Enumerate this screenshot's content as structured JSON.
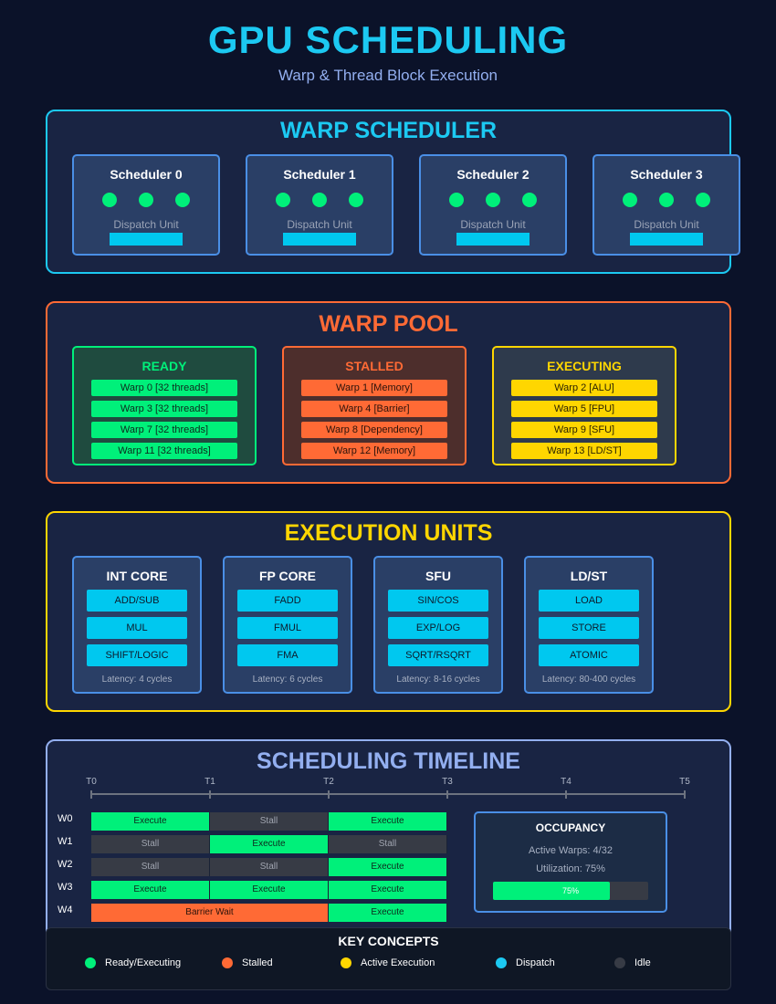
{
  "header": {
    "title": "GPU SCHEDULING",
    "subtitle": "Warp & Thread Block Execution"
  },
  "colors": {
    "cyan": "#1cc9f2",
    "green": "#00f07a",
    "orange": "#ff6a35",
    "yellow": "#ffd600",
    "blue": "#4a8fe6",
    "idle": "#373b45"
  },
  "warp_scheduler": {
    "title": "WARP SCHEDULER",
    "schedulers": [
      {
        "name": "Scheduler 0",
        "dispatch_label": "Dispatch Unit"
      },
      {
        "name": "Scheduler 1",
        "dispatch_label": "Dispatch Unit"
      },
      {
        "name": "Scheduler 2",
        "dispatch_label": "Dispatch Unit"
      },
      {
        "name": "Scheduler 3",
        "dispatch_label": "Dispatch Unit"
      }
    ]
  },
  "warp_pool": {
    "title": "WARP POOL",
    "groups": [
      {
        "name": "READY",
        "items": [
          "Warp 0 [32 threads]",
          "Warp 3 [32 threads]",
          "Warp 7 [32 threads]",
          "Warp 11 [32 threads]"
        ]
      },
      {
        "name": "STALLED",
        "items": [
          "Warp 1 [Memory]",
          "Warp 4 [Barrier]",
          "Warp 8 [Dependency]",
          "Warp 12 [Memory]"
        ]
      },
      {
        "name": "EXECUTING",
        "items": [
          "Warp 2 [ALU]",
          "Warp 5 [FPU]",
          "Warp 9 [SFU]",
          "Warp 13 [LD/ST]"
        ]
      }
    ]
  },
  "execution_units": {
    "title": "EXECUTION UNITS",
    "units": [
      {
        "name": "INT CORE",
        "ops": [
          "ADD/SUB",
          "MUL",
          "SHIFT/LOGIC"
        ],
        "latency": "Latency: 4 cycles"
      },
      {
        "name": "FP CORE",
        "ops": [
          "FADD",
          "FMUL",
          "FMA"
        ],
        "latency": "Latency: 6 cycles"
      },
      {
        "name": "SFU",
        "ops": [
          "SIN/COS",
          "EXP/LOG",
          "SQRT/RSQRT"
        ],
        "latency": "Latency: 8-16 cycles"
      },
      {
        "name": "LD/ST",
        "ops": [
          "LOAD",
          "STORE",
          "ATOMIC"
        ],
        "latency": "Latency: 80-400 cycles"
      }
    ]
  },
  "timeline": {
    "title": "SCHEDULING TIMELINE",
    "ticks": [
      "T0",
      "T1",
      "T2",
      "T3",
      "T4",
      "T5"
    ],
    "rows": [
      {
        "label": "W0",
        "segments": [
          {
            "text": "Execute",
            "state": "execute",
            "start": 0,
            "end": 1
          },
          {
            "text": "Stall",
            "state": "stall",
            "start": 1,
            "end": 2
          },
          {
            "text": "Execute",
            "state": "execute",
            "start": 2,
            "end": 3
          }
        ]
      },
      {
        "label": "W1",
        "segments": [
          {
            "text": "Stall",
            "state": "stall",
            "start": 0,
            "end": 1
          },
          {
            "text": "Execute",
            "state": "execute",
            "start": 1,
            "end": 2
          },
          {
            "text": "Stall",
            "state": "stall",
            "start": 2,
            "end": 3
          }
        ]
      },
      {
        "label": "W2",
        "segments": [
          {
            "text": "Stall",
            "state": "stall",
            "start": 0,
            "end": 1
          },
          {
            "text": "Stall",
            "state": "stall",
            "start": 1,
            "end": 2
          },
          {
            "text": "Execute",
            "state": "execute",
            "start": 2,
            "end": 3
          }
        ]
      },
      {
        "label": "W3",
        "segments": [
          {
            "text": "Execute",
            "state": "execute",
            "start": 0,
            "end": 1
          },
          {
            "text": "Execute",
            "state": "execute",
            "start": 1,
            "end": 2
          },
          {
            "text": "Execute",
            "state": "execute",
            "start": 2,
            "end": 3
          }
        ]
      },
      {
        "label": "W4",
        "segments": [
          {
            "text": "Barrier Wait",
            "state": "barrier",
            "start": 0,
            "end": 2
          },
          {
            "text": "Execute",
            "state": "execute",
            "start": 2,
            "end": 3
          }
        ]
      }
    ]
  },
  "occupancy": {
    "title": "OCCUPANCY",
    "active_warps": "Active Warps: 4/32",
    "utilization": "Utilization: 75%",
    "bar_label": "75%",
    "fraction": 0.75
  },
  "key_concepts": {
    "title": "KEY CONCEPTS",
    "items": [
      {
        "label": "Ready/Executing",
        "color": "#00f07a"
      },
      {
        "label": "Stalled",
        "color": "#ff6a35"
      },
      {
        "label": "Active Execution",
        "color": "#ffd600"
      },
      {
        "label": "Dispatch",
        "color": "#1cc9f2"
      },
      {
        "label": "Idle",
        "color": "#373b45"
      }
    ]
  }
}
